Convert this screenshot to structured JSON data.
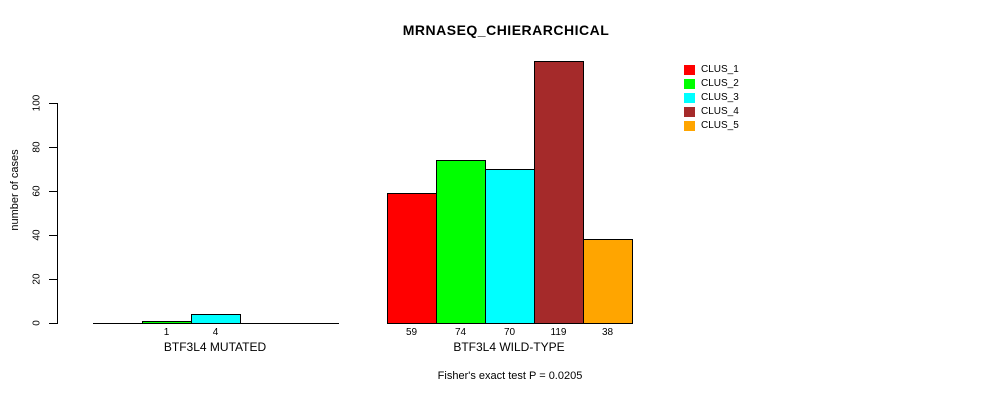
{
  "chart_data": {
    "type": "bar",
    "title": "MRNASEQ_CHIERARCHICAL",
    "ylabel": "number of cases",
    "xlabel": "",
    "footer": "Fisher's exact test P = 0.0205",
    "y_ticks": [
      0,
      20,
      40,
      60,
      80,
      100
    ],
    "ylim": [
      0,
      119
    ],
    "grid": false,
    "legend_position": "right",
    "categories": [
      "BTF3L4 MUTATED",
      "BTF3L4 WILD-TYPE"
    ],
    "series": [
      {
        "name": "CLUS_1",
        "color": "#FF0000",
        "values": [
          0,
          59
        ]
      },
      {
        "name": "CLUS_2",
        "color": "#00FF00",
        "values": [
          1,
          74
        ]
      },
      {
        "name": "CLUS_3",
        "color": "#00FFFF",
        "values": [
          4,
          70
        ]
      },
      {
        "name": "CLUS_4",
        "color": "#A52A2A",
        "values": [
          0,
          119
        ]
      },
      {
        "name": "CLUS_5",
        "color": "#FFA500",
        "values": [
          0,
          38
        ]
      }
    ],
    "bar_value_labels": {
      "BTF3L4 MUTATED": [
        1,
        4
      ],
      "BTF3L4 WILD-TYPE": [
        59,
        74,
        70,
        119,
        38
      ]
    },
    "axis_color": "#000000",
    "text_color": "#000000",
    "background_color": "#FFFFFF"
  }
}
